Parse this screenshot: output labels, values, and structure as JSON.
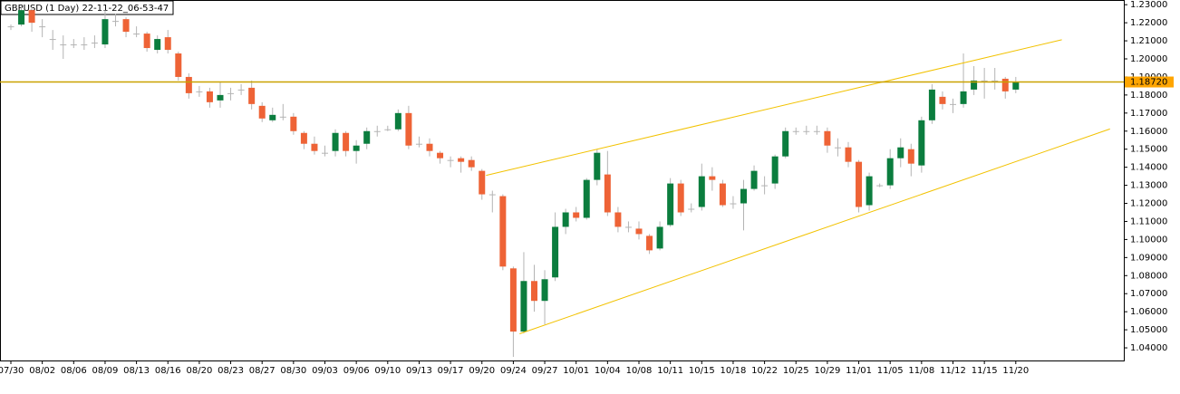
{
  "chart_data": {
    "type": "candlestick",
    "title": "GBPUSD (1 Day) 22-11-22_06-53-47",
    "categories": [
      "07/30",
      null,
      null,
      "08/02",
      null,
      null,
      "08/06",
      null,
      null,
      "08/09",
      null,
      null,
      "08/13",
      null,
      null,
      "08/16",
      null,
      null,
      "08/20",
      null,
      null,
      "08/23",
      null,
      null,
      "08/27",
      null,
      null,
      "08/30",
      null,
      null,
      "09/03",
      null,
      null,
      "09/06",
      null,
      null,
      "09/10",
      null,
      null,
      "09/13",
      null,
      null,
      "09/17",
      null,
      null,
      "09/20",
      null,
      null,
      "09/24",
      null,
      null,
      "09/27",
      null,
      null,
      "10/01",
      null,
      null,
      "10/04",
      null,
      null,
      "10/08",
      null,
      null,
      "10/11",
      null,
      null,
      "10/15",
      null,
      null,
      "10/18",
      null,
      null,
      "10/22",
      null,
      null,
      "10/25",
      null,
      null,
      "10/29",
      null,
      null,
      "11/01",
      null,
      null,
      "11/05",
      null,
      null,
      "11/08",
      null,
      null,
      "11/12",
      null,
      null,
      "11/15",
      null,
      null,
      "11/20"
    ],
    "open": [
      1.218,
      1.219,
      1.227,
      1.218,
      1.211,
      1.208,
      1.208,
      1.208,
      1.209,
      1.208,
      1.221,
      1.222,
      1.214,
      1.214,
      1.205,
      1.212,
      1.203,
      1.19,
      1.182,
      1.182,
      1.177,
      1.181,
      1.183,
      1.184,
      1.174,
      1.166,
      1.168,
      1.168,
      1.159,
      1.153,
      1.148,
      1.149,
      1.159,
      1.149,
      1.153,
      1.16,
      1.161,
      1.161,
      1.17,
      1.153,
      1.153,
      1.148,
      1.144,
      1.145,
      1.144,
      1.138,
      1.125,
      1.124,
      1.084,
      1.049,
      1.077,
      1.066,
      1.079,
      1.107,
      1.115,
      1.112,
      1.133,
      1.136,
      1.115,
      1.107,
      1.106,
      1.102,
      1.095,
      1.108,
      1.131,
      1.117,
      1.118,
      1.135,
      1.131,
      1.12,
      1.12,
      1.128,
      1.13,
      1.131,
      1.146,
      1.16,
      1.16,
      1.16,
      1.16,
      1.151,
      1.151,
      1.143,
      1.119,
      1.13,
      1.13,
      1.145,
      1.15,
      1.141,
      1.166,
      1.179,
      1.175,
      1.175,
      1.183,
      1.188,
      1.188,
      1.189,
      1.183
    ],
    "high": [
      1.219,
      1.229,
      1.229,
      1.222,
      1.216,
      1.213,
      1.211,
      1.212,
      1.213,
      1.227,
      1.225,
      1.223,
      1.218,
      1.215,
      1.213,
      1.216,
      1.204,
      1.192,
      1.185,
      1.184,
      1.187,
      1.184,
      1.186,
      1.188,
      1.176,
      1.173,
      1.175,
      1.17,
      1.16,
      1.157,
      1.152,
      1.161,
      1.16,
      1.155,
      1.162,
      1.163,
      1.163,
      1.172,
      1.174,
      1.157,
      1.156,
      1.149,
      1.146,
      1.146,
      1.146,
      1.139,
      1.127,
      1.125,
      1.085,
      1.093,
      1.086,
      1.083,
      1.115,
      1.117,
      1.118,
      1.134,
      1.15,
      1.149,
      1.118,
      1.11,
      1.11,
      1.103,
      1.11,
      1.134,
      1.133,
      1.12,
      1.142,
      1.14,
      1.133,
      1.124,
      1.133,
      1.141,
      1.135,
      1.147,
      1.162,
      1.162,
      1.163,
      1.163,
      1.162,
      1.156,
      1.154,
      1.144,
      1.137,
      1.131,
      1.15,
      1.156,
      1.153,
      1.168,
      1.186,
      1.182,
      1.178,
      1.203,
      1.196,
      1.195,
      1.195,
      1.19,
      1.19
    ],
    "low": [
      1.216,
      1.218,
      1.215,
      1.212,
      1.205,
      1.2,
      1.206,
      1.205,
      1.206,
      1.206,
      1.218,
      1.212,
      1.212,
      1.204,
      1.203,
      1.203,
      1.188,
      1.178,
      1.179,
      1.173,
      1.173,
      1.177,
      1.18,
      1.172,
      1.165,
      1.165,
      1.166,
      1.158,
      1.15,
      1.147,
      1.146,
      1.146,
      1.146,
      1.142,
      1.15,
      1.157,
      1.16,
      1.16,
      1.15,
      1.151,
      1.146,
      1.142,
      1.14,
      1.137,
      1.138,
      1.122,
      1.115,
      1.083,
      1.035,
      1.048,
      1.06,
      1.053,
      1.077,
      1.103,
      1.11,
      1.111,
      1.13,
      1.113,
      1.104,
      1.104,
      1.1,
      1.092,
      1.094,
      1.107,
      1.113,
      1.115,
      1.116,
      1.127,
      1.118,
      1.117,
      1.105,
      1.127,
      1.125,
      1.128,
      1.145,
      1.158,
      1.158,
      1.158,
      1.148,
      1.146,
      1.14,
      1.115,
      1.116,
      1.129,
      1.128,
      1.14,
      1.135,
      1.137,
      1.164,
      1.172,
      1.17,
      1.173,
      1.18,
      1.178,
      1.183,
      1.178,
      1.181
    ],
    "close": [
      1.218,
      1.227,
      1.22,
      1.218,
      1.211,
      1.208,
      1.208,
      1.208,
      1.209,
      1.222,
      1.221,
      1.215,
      1.214,
      1.206,
      1.211,
      1.205,
      1.19,
      1.181,
      1.182,
      1.176,
      1.18,
      1.181,
      1.183,
      1.175,
      1.167,
      1.169,
      1.168,
      1.16,
      1.153,
      1.149,
      1.148,
      1.159,
      1.149,
      1.152,
      1.16,
      1.16,
      1.161,
      1.17,
      1.152,
      1.153,
      1.149,
      1.145,
      1.144,
      1.143,
      1.14,
      1.125,
      1.125,
      1.085,
      1.049,
      1.077,
      1.066,
      1.078,
      1.107,
      1.115,
      1.112,
      1.133,
      1.148,
      1.115,
      1.107,
      1.107,
      1.103,
      1.094,
      1.107,
      1.131,
      1.115,
      1.117,
      1.135,
      1.133,
      1.119,
      1.12,
      1.128,
      1.138,
      1.13,
      1.146,
      1.16,
      1.16,
      1.16,
      1.16,
      1.152,
      1.151,
      1.143,
      1.118,
      1.135,
      1.13,
      1.145,
      1.151,
      1.142,
      1.166,
      1.183,
      1.175,
      1.175,
      1.182,
      1.188,
      1.188,
      1.188,
      1.182,
      1.1872
    ],
    "up_color": "#0b7d3e",
    "down_color": "#ee6336",
    "flat_color": "#b4b4b4",
    "wick_color": "#b4b4b4",
    "ylim": [
      1.033,
      1.2321
    ],
    "yticks": [
      {
        "value": 1.04,
        "label": "1.04000"
      },
      {
        "value": 1.05,
        "label": "1.05000"
      },
      {
        "value": 1.06,
        "label": "1.06000"
      },
      {
        "value": 1.07,
        "label": "1.07000"
      },
      {
        "value": 1.08,
        "label": "1.08000"
      },
      {
        "value": 1.09,
        "label": "1.09000"
      },
      {
        "value": 1.1,
        "label": "1.10000"
      },
      {
        "value": 1.11,
        "label": "1.11000"
      },
      {
        "value": 1.12,
        "label": "1.12000"
      },
      {
        "value": 1.13,
        "label": "1.13000"
      },
      {
        "value": 1.14,
        "label": "1.14000"
      },
      {
        "value": 1.15,
        "label": "1.15000"
      },
      {
        "value": 1.16,
        "label": "1.16000"
      },
      {
        "value": 1.17,
        "label": "1.17000"
      },
      {
        "value": 1.18,
        "label": "1.18000"
      },
      {
        "value": 1.19,
        "label": "1.19000"
      },
      {
        "value": 1.2,
        "label": "1.20000"
      },
      {
        "value": 1.21,
        "label": "1.21000"
      },
      {
        "value": 1.22,
        "label": "1.22000"
      },
      {
        "value": 1.23,
        "label": "1.23000"
      }
    ],
    "hline": {
      "value": 1.1872,
      "label": "1.18720",
      "color": "#c9a100",
      "label_color": "#ffa500"
    },
    "trendlines": [
      {
        "x": [
          45.4,
          100.4
        ],
        "y": [
          1.1355,
          1.2106
        ],
        "color": "#f2c200"
      },
      {
        "x": [
          48.6,
          105.0
        ],
        "y": [
          1.0478,
          1.1612
        ],
        "color": "#f2c200"
      }
    ]
  }
}
